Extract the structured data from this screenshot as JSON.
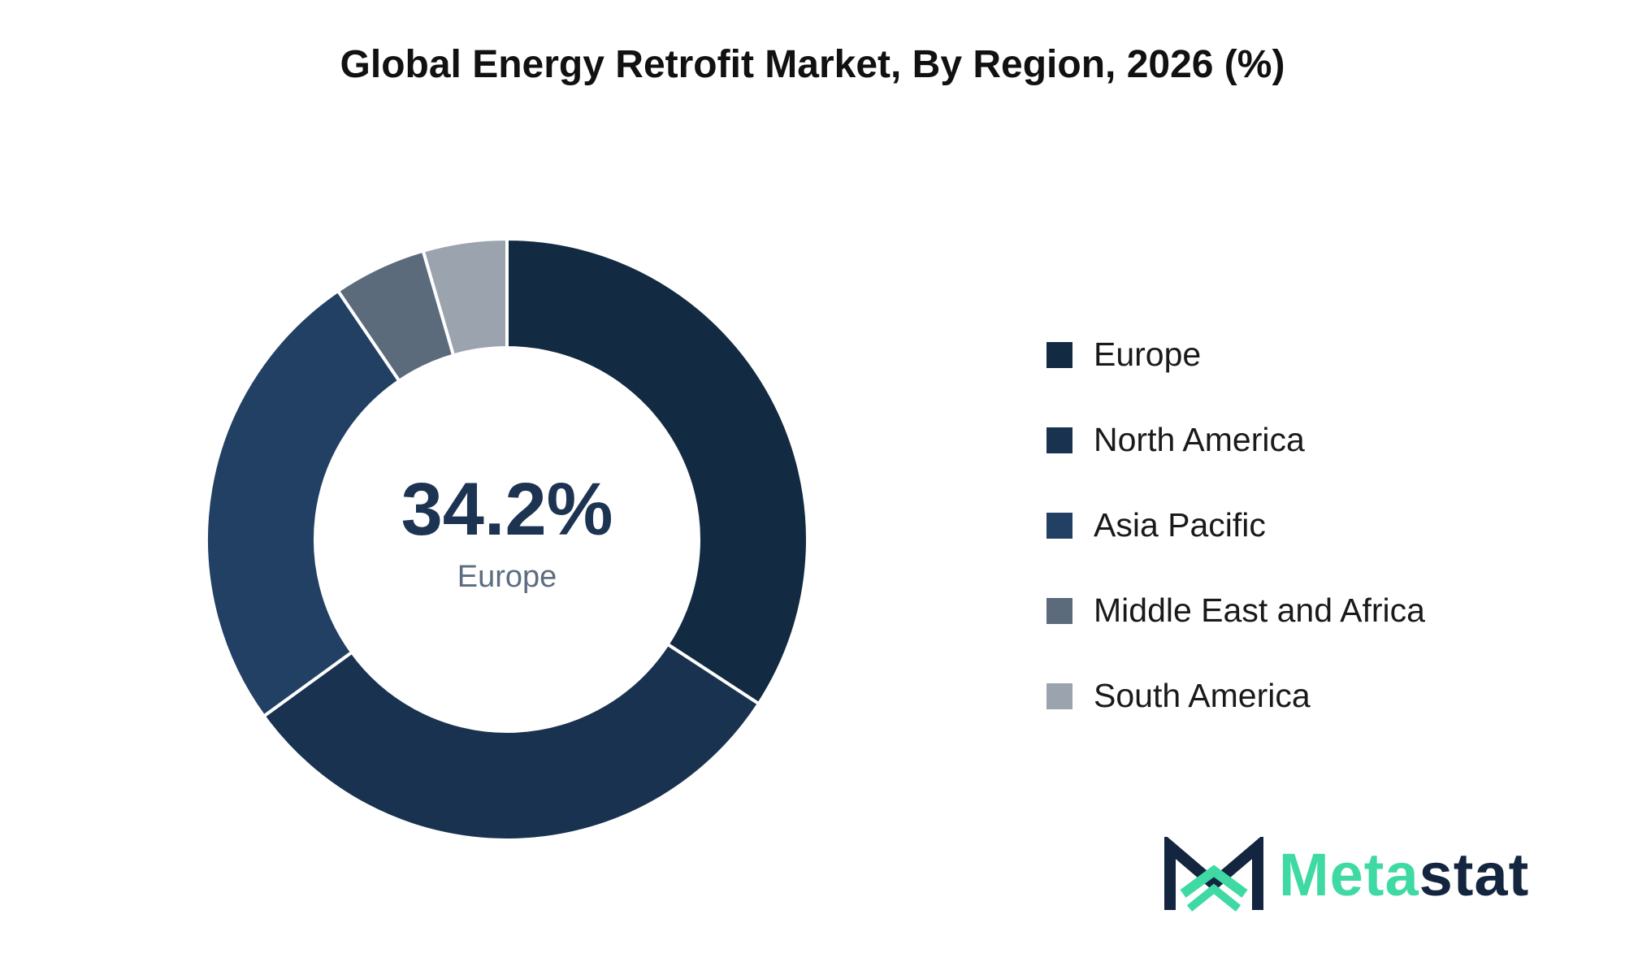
{
  "title": "Global Energy Retrofit Market, By Region, 2026 (%)",
  "chart_data": {
    "type": "pie",
    "variant": "donut",
    "title": "Global Energy Retrofit Market, By Region, 2026 (%)",
    "categories": [
      "Europe",
      "North America",
      "Asia Pacific",
      "Middle East and Africa",
      "South America"
    ],
    "values": [
      34.2,
      30.8,
      25.5,
      5.0,
      4.5
    ],
    "colors": [
      "#132a43",
      "#19324f",
      "#214064",
      "#5b6b7c",
      "#9ba3ae"
    ],
    "legend_position": "right",
    "center_value": "34.2%",
    "center_label": "Europe"
  },
  "logo": {
    "text_part1": "Meta",
    "text_part2": "stat",
    "color_primary": "#13253f",
    "color_accent": "#3fd9a3"
  }
}
